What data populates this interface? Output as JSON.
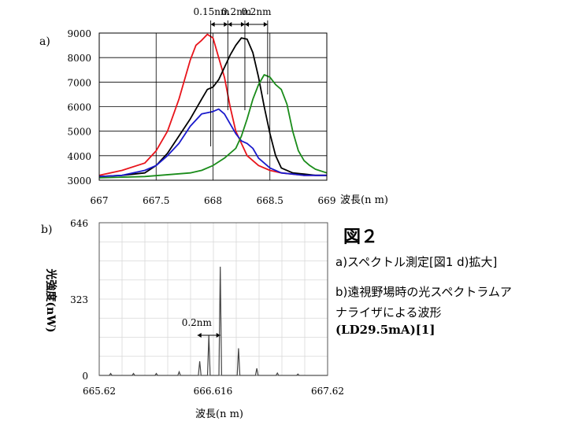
{
  "figure": {
    "title": "図２",
    "caption_a": "a)スペクトル測定[図1 d)拡大]",
    "caption_b_line1": "b)遠視野場時の光スペクトラムア",
    "caption_b_line2": "ナライザによる波形",
    "caption_b_line3": "(LD29.5mA)[1]"
  },
  "chart_data": [
    {
      "panel": "a)",
      "type": "line",
      "xlabel": "波長(n m)",
      "ylabel": "",
      "xlim": [
        667,
        669
      ],
      "ylim": [
        3000,
        9000
      ],
      "xticks": [
        "667",
        "667.5",
        "668",
        "668.5",
        "669"
      ],
      "yticks": [
        "3000",
        "4000",
        "5000",
        "6000",
        "7000",
        "8000",
        "9000"
      ],
      "grid": true,
      "colors": {
        "red": "#e8141b",
        "black": "#000000",
        "blue": "#1a1acc",
        "green": "#1a8c1a"
      },
      "annotations": [
        "0.15nm",
        "0.2nm",
        "0.2nm"
      ],
      "annotation_x": [
        [
          667.98,
          668.13
        ],
        [
          668.13,
          668.28
        ],
        [
          668.28,
          668.48
        ]
      ],
      "series": [
        {
          "color": "red",
          "x": [
            667,
            667.2,
            667.4,
            667.5,
            667.6,
            667.7,
            667.8,
            667.85,
            667.9,
            667.95,
            668.0,
            668.05,
            668.1,
            668.15,
            668.2,
            668.3,
            668.4,
            668.5,
            668.6,
            668.7,
            668.8,
            668.9,
            669.0
          ],
          "y": [
            3200,
            3400,
            3700,
            4200,
            5000,
            6300,
            7900,
            8500,
            8700,
            8950,
            8800,
            8000,
            7200,
            6000,
            5000,
            4000,
            3600,
            3400,
            3300,
            3250,
            3200,
            3200,
            3200
          ]
        },
        {
          "color": "black",
          "x": [
            667,
            667.2,
            667.4,
            667.5,
            667.6,
            667.7,
            667.8,
            667.9,
            667.95,
            668.0,
            668.05,
            668.1,
            668.15,
            668.2,
            668.25,
            668.3,
            668.35,
            668.4,
            668.45,
            668.5,
            668.55,
            668.6,
            668.7,
            668.8,
            668.9,
            669.0
          ],
          "y": [
            3150,
            3200,
            3300,
            3600,
            4100,
            4800,
            5500,
            6300,
            6700,
            6800,
            7100,
            7600,
            8100,
            8500,
            8800,
            8750,
            8200,
            7200,
            6000,
            4900,
            4000,
            3500,
            3300,
            3250,
            3200,
            3200
          ]
        },
        {
          "color": "blue",
          "x": [
            667,
            667.2,
            667.4,
            667.5,
            667.6,
            667.7,
            667.8,
            667.9,
            668.0,
            668.05,
            668.1,
            668.15,
            668.2,
            668.25,
            668.3,
            668.35,
            668.4,
            668.5,
            668.6,
            668.7,
            668.8,
            669.0
          ],
          "y": [
            3150,
            3200,
            3400,
            3600,
            4000,
            4500,
            5200,
            5700,
            5800,
            5900,
            5700,
            5300,
            4900,
            4600,
            4500,
            4300,
            3900,
            3500,
            3300,
            3250,
            3200,
            3200
          ]
        },
        {
          "color": "green",
          "x": [
            667,
            667.4,
            667.8,
            667.9,
            668.0,
            668.1,
            668.2,
            668.25,
            668.3,
            668.35,
            668.4,
            668.45,
            668.5,
            668.55,
            668.6,
            668.65,
            668.7,
            668.75,
            668.8,
            668.85,
            668.9,
            669.0
          ],
          "y": [
            3100,
            3150,
            3300,
            3400,
            3600,
            3900,
            4300,
            4800,
            5500,
            6300,
            6900,
            7300,
            7200,
            6900,
            6700,
            6100,
            5000,
            4200,
            3800,
            3600,
            3450,
            3300
          ]
        }
      ]
    },
    {
      "panel": "b)",
      "type": "line",
      "xlabel": "波長(n m)",
      "ylabel": "光強度(nW)",
      "xlim": [
        665.62,
        667.62
      ],
      "ylim": [
        0,
        646
      ],
      "xticks": [
        "665.62",
        "666.616",
        "667.62"
      ],
      "yticks": [
        "0",
        "323",
        "646"
      ],
      "grid": true,
      "color": "#444444",
      "annotations": [
        "0.2nm"
      ],
      "annotation_x": [
        [
          666.48,
          666.68
        ]
      ],
      "peaks": {
        "x": [
          665.72,
          665.92,
          666.12,
          666.32,
          666.5,
          666.58,
          666.68,
          666.84,
          667.0,
          667.18,
          667.36
        ],
        "y": [
          8,
          8,
          8,
          15,
          60,
          170,
          460,
          115,
          30,
          10,
          6
        ]
      }
    }
  ]
}
